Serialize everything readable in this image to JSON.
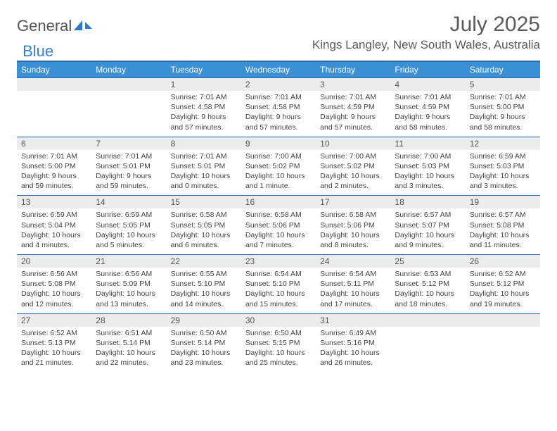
{
  "brand": {
    "part1": "General",
    "part2": "Blue"
  },
  "title": "July 2025",
  "location": "Kings Langley, New South Wales, Australia",
  "colors": {
    "header_bg": "#3b8fd4",
    "header_border": "#2f6aa8",
    "numrow_bg": "#ececec",
    "text": "#444444",
    "title_text": "#5a5a5a"
  },
  "dow": [
    "Sunday",
    "Monday",
    "Tuesday",
    "Wednesday",
    "Thursday",
    "Friday",
    "Saturday"
  ],
  "weeks": [
    [
      {
        "n": "",
        "sr": "",
        "ss": "",
        "dl": ""
      },
      {
        "n": "",
        "sr": "",
        "ss": "",
        "dl": ""
      },
      {
        "n": "1",
        "sr": "Sunrise: 7:01 AM",
        "ss": "Sunset: 4:58 PM",
        "dl": "Daylight: 9 hours and 57 minutes."
      },
      {
        "n": "2",
        "sr": "Sunrise: 7:01 AM",
        "ss": "Sunset: 4:58 PM",
        "dl": "Daylight: 9 hours and 57 minutes."
      },
      {
        "n": "3",
        "sr": "Sunrise: 7:01 AM",
        "ss": "Sunset: 4:59 PM",
        "dl": "Daylight: 9 hours and 57 minutes."
      },
      {
        "n": "4",
        "sr": "Sunrise: 7:01 AM",
        "ss": "Sunset: 4:59 PM",
        "dl": "Daylight: 9 hours and 58 minutes."
      },
      {
        "n": "5",
        "sr": "Sunrise: 7:01 AM",
        "ss": "Sunset: 5:00 PM",
        "dl": "Daylight: 9 hours and 58 minutes."
      }
    ],
    [
      {
        "n": "6",
        "sr": "Sunrise: 7:01 AM",
        "ss": "Sunset: 5:00 PM",
        "dl": "Daylight: 9 hours and 59 minutes."
      },
      {
        "n": "7",
        "sr": "Sunrise: 7:01 AM",
        "ss": "Sunset: 5:01 PM",
        "dl": "Daylight: 9 hours and 59 minutes."
      },
      {
        "n": "8",
        "sr": "Sunrise: 7:01 AM",
        "ss": "Sunset: 5:01 PM",
        "dl": "Daylight: 10 hours and 0 minutes."
      },
      {
        "n": "9",
        "sr": "Sunrise: 7:00 AM",
        "ss": "Sunset: 5:02 PM",
        "dl": "Daylight: 10 hours and 1 minute."
      },
      {
        "n": "10",
        "sr": "Sunrise: 7:00 AM",
        "ss": "Sunset: 5:02 PM",
        "dl": "Daylight: 10 hours and 2 minutes."
      },
      {
        "n": "11",
        "sr": "Sunrise: 7:00 AM",
        "ss": "Sunset: 5:03 PM",
        "dl": "Daylight: 10 hours and 3 minutes."
      },
      {
        "n": "12",
        "sr": "Sunrise: 6:59 AM",
        "ss": "Sunset: 5:03 PM",
        "dl": "Daylight: 10 hours and 3 minutes."
      }
    ],
    [
      {
        "n": "13",
        "sr": "Sunrise: 6:59 AM",
        "ss": "Sunset: 5:04 PM",
        "dl": "Daylight: 10 hours and 4 minutes."
      },
      {
        "n": "14",
        "sr": "Sunrise: 6:59 AM",
        "ss": "Sunset: 5:05 PM",
        "dl": "Daylight: 10 hours and 5 minutes."
      },
      {
        "n": "15",
        "sr": "Sunrise: 6:58 AM",
        "ss": "Sunset: 5:05 PM",
        "dl": "Daylight: 10 hours and 6 minutes."
      },
      {
        "n": "16",
        "sr": "Sunrise: 6:58 AM",
        "ss": "Sunset: 5:06 PM",
        "dl": "Daylight: 10 hours and 7 minutes."
      },
      {
        "n": "17",
        "sr": "Sunrise: 6:58 AM",
        "ss": "Sunset: 5:06 PM",
        "dl": "Daylight: 10 hours and 8 minutes."
      },
      {
        "n": "18",
        "sr": "Sunrise: 6:57 AM",
        "ss": "Sunset: 5:07 PM",
        "dl": "Daylight: 10 hours and 9 minutes."
      },
      {
        "n": "19",
        "sr": "Sunrise: 6:57 AM",
        "ss": "Sunset: 5:08 PM",
        "dl": "Daylight: 10 hours and 11 minutes."
      }
    ],
    [
      {
        "n": "20",
        "sr": "Sunrise: 6:56 AM",
        "ss": "Sunset: 5:08 PM",
        "dl": "Daylight: 10 hours and 12 minutes."
      },
      {
        "n": "21",
        "sr": "Sunrise: 6:56 AM",
        "ss": "Sunset: 5:09 PM",
        "dl": "Daylight: 10 hours and 13 minutes."
      },
      {
        "n": "22",
        "sr": "Sunrise: 6:55 AM",
        "ss": "Sunset: 5:10 PM",
        "dl": "Daylight: 10 hours and 14 minutes."
      },
      {
        "n": "23",
        "sr": "Sunrise: 6:54 AM",
        "ss": "Sunset: 5:10 PM",
        "dl": "Daylight: 10 hours and 15 minutes."
      },
      {
        "n": "24",
        "sr": "Sunrise: 6:54 AM",
        "ss": "Sunset: 5:11 PM",
        "dl": "Daylight: 10 hours and 17 minutes."
      },
      {
        "n": "25",
        "sr": "Sunrise: 6:53 AM",
        "ss": "Sunset: 5:12 PM",
        "dl": "Daylight: 10 hours and 18 minutes."
      },
      {
        "n": "26",
        "sr": "Sunrise: 6:52 AM",
        "ss": "Sunset: 5:12 PM",
        "dl": "Daylight: 10 hours and 19 minutes."
      }
    ],
    [
      {
        "n": "27",
        "sr": "Sunrise: 6:52 AM",
        "ss": "Sunset: 5:13 PM",
        "dl": "Daylight: 10 hours and 21 minutes."
      },
      {
        "n": "28",
        "sr": "Sunrise: 6:51 AM",
        "ss": "Sunset: 5:14 PM",
        "dl": "Daylight: 10 hours and 22 minutes."
      },
      {
        "n": "29",
        "sr": "Sunrise: 6:50 AM",
        "ss": "Sunset: 5:14 PM",
        "dl": "Daylight: 10 hours and 23 minutes."
      },
      {
        "n": "30",
        "sr": "Sunrise: 6:50 AM",
        "ss": "Sunset: 5:15 PM",
        "dl": "Daylight: 10 hours and 25 minutes."
      },
      {
        "n": "31",
        "sr": "Sunrise: 6:49 AM",
        "ss": "Sunset: 5:16 PM",
        "dl": "Daylight: 10 hours and 26 minutes."
      },
      {
        "n": "",
        "sr": "",
        "ss": "",
        "dl": ""
      },
      {
        "n": "",
        "sr": "",
        "ss": "",
        "dl": ""
      }
    ]
  ]
}
